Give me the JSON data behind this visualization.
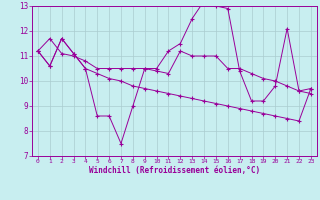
{
  "line1_x": [
    0,
    1,
    2,
    3,
    4,
    5,
    6,
    7,
    8,
    9,
    10,
    11,
    12,
    13,
    14,
    15,
    16,
    17,
    18,
    19,
    20,
    21,
    22,
    23
  ],
  "line1_y": [
    11.2,
    10.6,
    11.7,
    11.1,
    10.5,
    8.6,
    8.6,
    7.5,
    9.0,
    10.5,
    10.5,
    11.2,
    11.5,
    12.5,
    13.2,
    13.0,
    12.9,
    10.4,
    9.2,
    9.2,
    9.8,
    12.1,
    9.6,
    9.7
  ],
  "line2_x": [
    0,
    1,
    2,
    3,
    4,
    5,
    6,
    7,
    8,
    9,
    10,
    11,
    12,
    13,
    14,
    15,
    16,
    17,
    18,
    19,
    20,
    21,
    22,
    23
  ],
  "line2_y": [
    11.2,
    11.7,
    11.1,
    11.0,
    10.8,
    10.5,
    10.5,
    10.5,
    10.5,
    10.5,
    10.4,
    10.3,
    11.2,
    11.0,
    11.0,
    11.0,
    10.5,
    10.5,
    10.3,
    10.1,
    10.0,
    9.8,
    9.6,
    9.5
  ],
  "line3_x": [
    0,
    1,
    2,
    3,
    4,
    5,
    6,
    7,
    8,
    9,
    10,
    11,
    12,
    13,
    14,
    15,
    16,
    17,
    18,
    19,
    20,
    21,
    22,
    23
  ],
  "line3_y": [
    11.2,
    10.6,
    11.7,
    11.1,
    10.5,
    10.3,
    10.1,
    10.0,
    9.8,
    9.7,
    9.6,
    9.5,
    9.4,
    9.3,
    9.2,
    9.1,
    9.0,
    8.9,
    8.8,
    8.7,
    8.6,
    8.5,
    8.4,
    9.7
  ],
  "color": "#990099",
  "bg_color": "#c8eef0",
  "grid_color": "#aaccd0",
  "xlabel": "Windchill (Refroidissement éolien,°C)",
  "xlim": [
    -0.5,
    23.5
  ],
  "ylim": [
    7,
    13
  ],
  "yticks": [
    7,
    8,
    9,
    10,
    11,
    12,
    13
  ],
  "xticks": [
    0,
    1,
    2,
    3,
    4,
    5,
    6,
    7,
    8,
    9,
    10,
    11,
    12,
    13,
    14,
    15,
    16,
    17,
    18,
    19,
    20,
    21,
    22,
    23
  ]
}
